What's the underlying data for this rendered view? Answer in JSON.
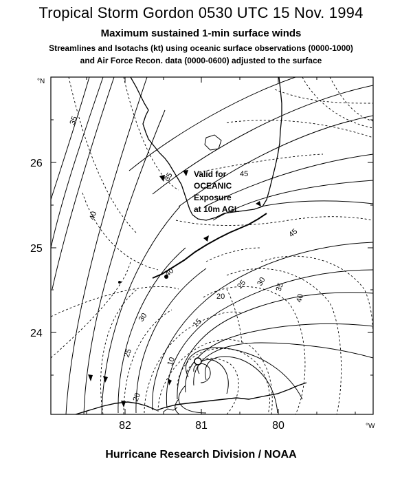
{
  "header": {
    "title": "Tropical Storm Gordon 0530 UTC 15 Nov. 1994",
    "subtitle": "Maximum sustained 1-min surface winds",
    "line1": "Streamlines and Isotachs (kt) using oceanic surface observations (0000-1000)",
    "line2": "and Air Force Recon. data (0000-0600) adjusted to the surface"
  },
  "axes": {
    "lat_labels": [
      "26",
      "25",
      "24"
    ],
    "lon_labels": [
      "82",
      "81",
      "80"
    ],
    "lat_unit": "°N",
    "lon_unit": "°W"
  },
  "note": {
    "line1": "Valid for",
    "line2": "OCEANIC",
    "line3": "Exposure",
    "line4": "at 10m AGL"
  },
  "isotachs": [
    "35",
    "45",
    "40",
    "35",
    "25",
    "30",
    "35",
    "40",
    "20",
    "45",
    "15",
    "30",
    "40",
    "25",
    "20",
    "10"
  ],
  "footer": "Hurricane Research Division / NOAA",
  "colors": {
    "ink": "#000000",
    "background": "#ffffff"
  }
}
